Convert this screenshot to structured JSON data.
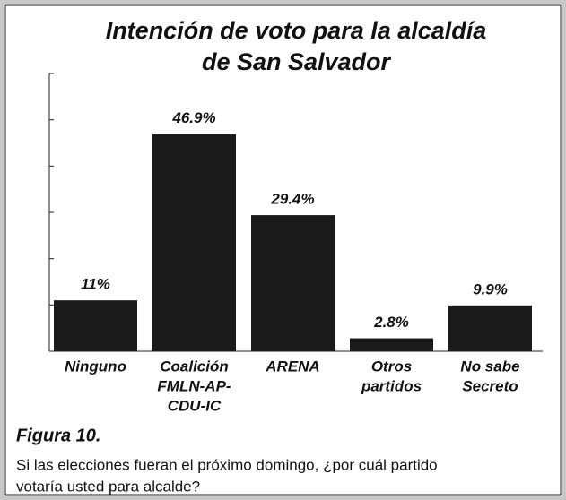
{
  "chart_data": {
    "type": "bar",
    "title": [
      "Intención de voto para la alcaldía",
      "de San Salvador"
    ],
    "categories": [
      [
        "Ninguno"
      ],
      [
        "Coalición",
        "FMLN-AP-",
        "CDU-IC"
      ],
      [
        "ARENA"
      ],
      [
        "Otros",
        "partidos"
      ],
      [
        "No sabe",
        "Secreto"
      ]
    ],
    "values": [
      11,
      46.9,
      29.4,
      2.8,
      9.9
    ],
    "value_labels": [
      "11%",
      "46.9%",
      "29.4%",
      "2.8%",
      "9.9%"
    ],
    "color": "#1a1a1a",
    "ylim": [
      0,
      60
    ],
    "yticks": [
      0,
      10,
      20,
      30,
      40,
      50,
      60
    ]
  },
  "caption": {
    "label": "Figura 10.",
    "text": [
      "Si las elecciones fueran el próximo domingo, ¿por cuál partido",
      "votaría usted para alcalde?"
    ]
  }
}
